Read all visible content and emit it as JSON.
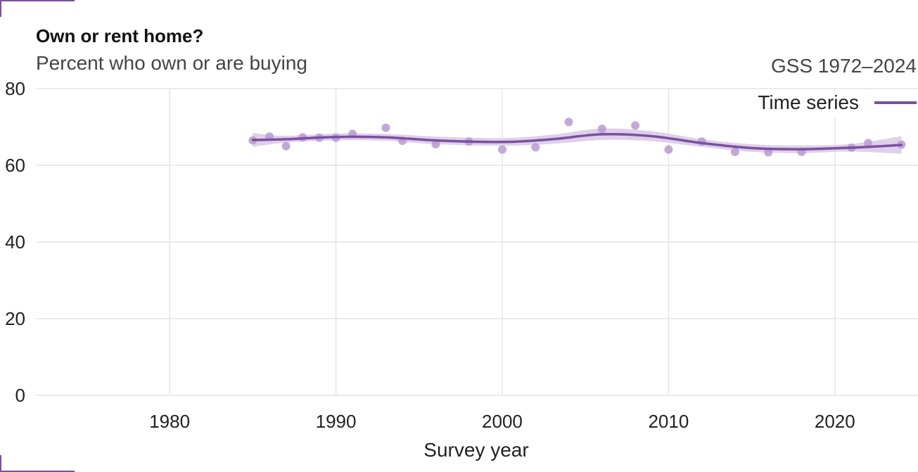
{
  "header": {
    "title": "Own or rent home?",
    "subtitle": "Percent who own or are buying",
    "source": "GSS 1972–2024"
  },
  "legend": {
    "label": "Time series"
  },
  "colors": {
    "accent": "#7b4fa0",
    "band": "#d9c8e6",
    "points": "#b99ad1",
    "grid": "#e4e4e4",
    "text": "#222222"
  },
  "chart_data": {
    "type": "line",
    "title": "Own or rent home?",
    "subtitle": "Percent who own or are buying",
    "xlabel": "Survey year",
    "ylabel": "",
    "xlim": [
      1972,
      2025
    ],
    "ylim": [
      0,
      80
    ],
    "x_ticks": [
      1980,
      1990,
      2000,
      2010,
      2020
    ],
    "y_ticks": [
      0,
      20,
      40,
      60,
      80
    ],
    "grid": true,
    "legend_position": "top-right",
    "series": [
      {
        "name": "Time series",
        "points": {
          "x": [
            1985,
            1986,
            1987,
            1988,
            1989,
            1990,
            1991,
            1993,
            1994,
            1996,
            1998,
            2000,
            2002,
            2004,
            2006,
            2008,
            2010,
            2012,
            2014,
            2016,
            2018,
            2021,
            2022,
            2024
          ],
          "y": [
            66.5,
            67.5,
            65,
            67.3,
            67.2,
            67.2,
            68.2,
            69.8,
            66.4,
            65.5,
            66.2,
            64.1,
            64.7,
            71.3,
            69.5,
            70.4,
            64.1,
            66.2,
            63.5,
            63.4,
            63.5,
            64.6,
            65.8,
            65.4
          ],
          "min_values": [],
          "max_values": []
        },
        "smooth": {
          "x": [
            1985,
            1987,
            1990,
            1993,
            1996,
            2000,
            2003,
            2006,
            2009,
            2012,
            2015,
            2018,
            2021,
            2024
          ],
          "y": [
            66.6,
            66.8,
            67.4,
            67.3,
            66.5,
            66.1,
            66.8,
            68.1,
            67.6,
            65.8,
            64.5,
            64.2,
            64.6,
            65.3
          ]
        },
        "band": {
          "lower": [
            64.8,
            65.9,
            66.5,
            66.4,
            65.5,
            65.1,
            65.6,
            66.6,
            66.3,
            64.8,
            63.5,
            63.2,
            63.6,
            63.0
          ],
          "upper": [
            68.4,
            67.7,
            68.3,
            68.2,
            67.5,
            67.1,
            68.0,
            69.6,
            68.9,
            66.8,
            65.5,
            65.2,
            65.6,
            67.6
          ]
        }
      }
    ]
  }
}
